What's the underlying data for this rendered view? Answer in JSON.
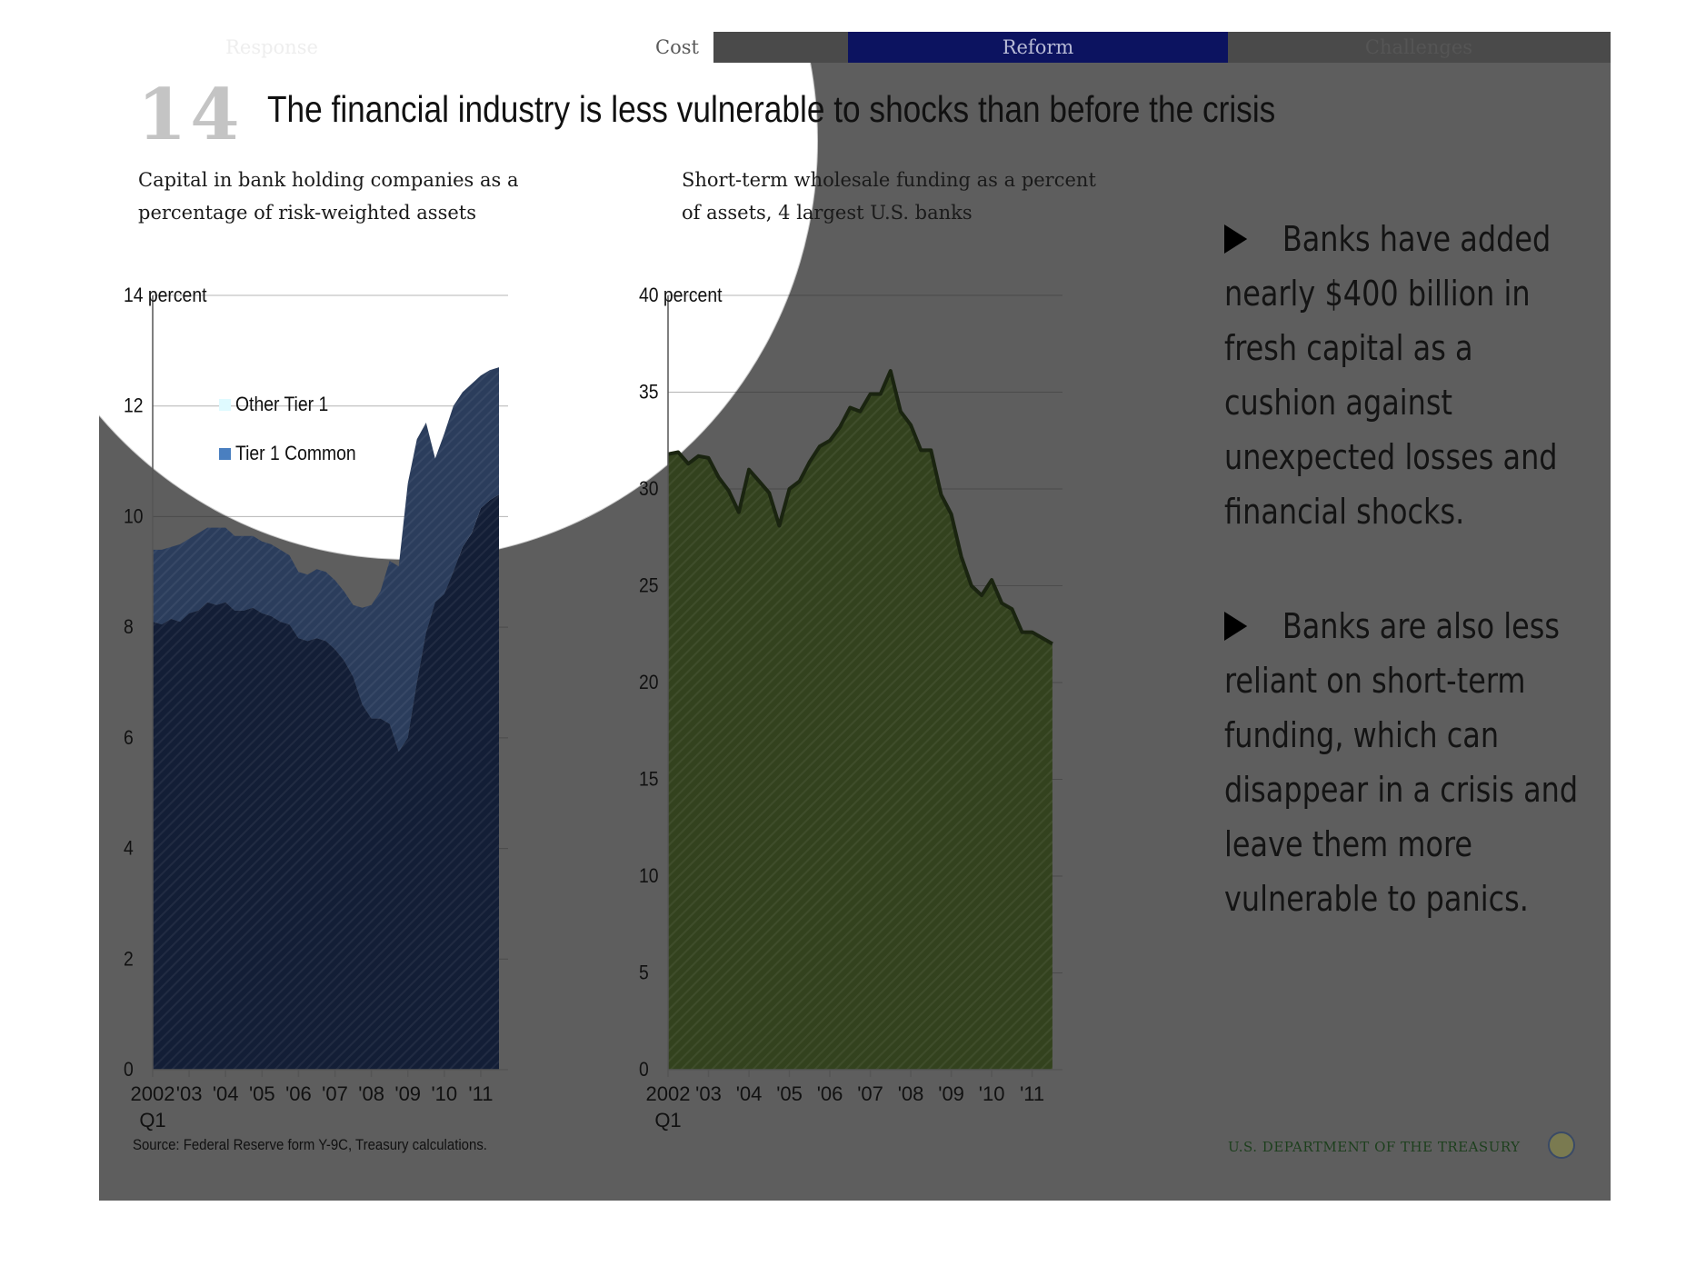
{
  "nav": {
    "items": [
      "Response",
      "Cost",
      "Reform",
      "Challenges"
    ],
    "active": "Reform"
  },
  "slide": {
    "number": "14",
    "title": "The financial industry is less vulnerable to shocks than before the crisis"
  },
  "bullets": [
    "Banks have added nearly $400 billion in fresh capital as a cushion against unexpected losses and financial shocks.",
    "Banks are also less reliant on short-term funding, which can disappear in a crisis and leave them more vulnerable to panics."
  ],
  "bullet_lines": [
    [
      "Banks have added",
      "nearly  $400 billion in",
      "fresh capital as a",
      "cushion against",
      "unexpected losses and",
      "financial shocks."
    ],
    [
      "Banks are also less",
      "reliant on short-term",
      "funding, which can",
      "disappear in a crisis and",
      "leave them more",
      "vulnerable to panics."
    ]
  ],
  "footer": {
    "source": "Source: Federal Reserve form Y-9C, Treasury calculations.",
    "org": "U.S. DEPARTMENT OF THE TREASURY"
  },
  "colors": {
    "tier1_common": "#131e36",
    "other_tier1": "#2b3d5c",
    "wholesale": "#33421e",
    "legend_common": "#4a7fc0",
    "legend_other": "#dffaff"
  },
  "chart_data": [
    {
      "type": "area",
      "title": "Capital in bank holding companies as a percentage of risk-weighted assets",
      "title_lines": [
        "Capital in bank holding companies as a",
        "percentage of risk-weighted assets"
      ],
      "ylabel": "percent",
      "unit_label": "14 percent",
      "ylim": [
        0,
        14
      ],
      "yticks": [
        0,
        2,
        4,
        6,
        8,
        10,
        12,
        14
      ],
      "ytick_labels": [
        "0",
        "2",
        "4",
        "6",
        "8",
        "10",
        "12",
        "14 percent"
      ],
      "xlim": [
        2002.0,
        2011.75
      ],
      "xticks": [
        2002,
        2003,
        2004,
        2005,
        2006,
        2007,
        2008,
        2009,
        2010,
        2011
      ],
      "xtick_labels": [
        "2002",
        "'03",
        "'04",
        "'05",
        "'06",
        "'07",
        "'08",
        "'09",
        "'10",
        "'11"
      ],
      "xtick_sublabel": "Q1",
      "legend": [
        "Other Tier 1",
        "Tier 1 Common"
      ],
      "stacked": true,
      "x": [
        2002.0,
        2002.25,
        2002.5,
        2002.75,
        2003.0,
        2003.25,
        2003.5,
        2003.75,
        2004.0,
        2004.25,
        2004.5,
        2004.75,
        2005.0,
        2005.25,
        2005.5,
        2005.75,
        2006.0,
        2006.25,
        2006.5,
        2006.75,
        2007.0,
        2007.25,
        2007.5,
        2007.75,
        2008.0,
        2008.25,
        2008.5,
        2008.75,
        2009.0,
        2009.25,
        2009.5,
        2009.75,
        2010.0,
        2010.25,
        2010.5,
        2010.75,
        2011.0,
        2011.25,
        2011.5
      ],
      "series": [
        {
          "name": "Tier 1 Common",
          "values": [
            8.1,
            8.05,
            8.15,
            8.1,
            8.25,
            8.3,
            8.45,
            8.4,
            8.45,
            8.3,
            8.3,
            8.35,
            8.25,
            8.2,
            8.1,
            8.05,
            7.8,
            7.75,
            7.8,
            7.75,
            7.6,
            7.4,
            7.1,
            6.6,
            6.35,
            6.35,
            6.25,
            5.75,
            6.0,
            7.0,
            7.9,
            8.45,
            8.6,
            9.0,
            9.45,
            9.7,
            10.15,
            10.3,
            10.4
          ]
        },
        {
          "name": "Other Tier 1",
          "values": [
            1.3,
            1.35,
            1.3,
            1.4,
            1.35,
            1.4,
            1.35,
            1.4,
            1.35,
            1.35,
            1.35,
            1.3,
            1.3,
            1.3,
            1.3,
            1.25,
            1.2,
            1.2,
            1.25,
            1.25,
            1.25,
            1.25,
            1.3,
            1.75,
            2.05,
            2.3,
            2.95,
            3.35,
            4.6,
            4.4,
            3.8,
            2.6,
            2.9,
            3.0,
            2.8,
            2.7,
            2.4,
            2.35,
            2.3
          ]
        }
      ]
    },
    {
      "type": "area",
      "title": "Short-term wholesale funding as a percent of assets, 4 largest U.S. banks",
      "title_lines": [
        "Short-term wholesale funding as a percent",
        "of assets, 4 largest U.S. banks"
      ],
      "ylabel": "percent",
      "unit_label": "40 percent",
      "ylim": [
        0,
        40
      ],
      "yticks": [
        0,
        5,
        10,
        15,
        20,
        25,
        30,
        35,
        40
      ],
      "ytick_labels": [
        "0",
        "5",
        "10",
        "15",
        "20",
        "25",
        "30",
        "35",
        "40 percent"
      ],
      "xlim": [
        2002.0,
        2011.75
      ],
      "xticks": [
        2002,
        2003,
        2004,
        2005,
        2006,
        2007,
        2008,
        2009,
        2010,
        2011
      ],
      "xtick_labels": [
        "2002",
        "'03",
        "'04",
        "'05",
        "'06",
        "'07",
        "'08",
        "'09",
        "'10",
        "'11"
      ],
      "xtick_sublabel": "Q1",
      "x": [
        2002.0,
        2002.25,
        2002.5,
        2002.75,
        2003.0,
        2003.25,
        2003.5,
        2003.75,
        2004.0,
        2004.25,
        2004.5,
        2004.75,
        2005.0,
        2005.25,
        2005.5,
        2005.75,
        2006.0,
        2006.25,
        2006.5,
        2006.75,
        2007.0,
        2007.25,
        2007.5,
        2007.75,
        2008.0,
        2008.25,
        2008.5,
        2008.75,
        2009.0,
        2009.25,
        2009.5,
        2009.75,
        2010.0,
        2010.25,
        2010.5,
        2010.75,
        2011.0,
        2011.25,
        2011.5
      ],
      "series": [
        {
          "name": "",
          "values": [
            31.8,
            31.9,
            31.3,
            31.7,
            31.6,
            30.6,
            29.9,
            28.8,
            31.0,
            30.4,
            29.8,
            28.1,
            30.0,
            30.4,
            31.4,
            32.2,
            32.5,
            33.2,
            34.2,
            34.0,
            34.9,
            34.9,
            36.1,
            34.0,
            33.3,
            32.0,
            32.0,
            29.7,
            28.7,
            26.5,
            25.0,
            24.5,
            25.3,
            24.1,
            23.8,
            22.6,
            22.6,
            22.3,
            22.0
          ]
        }
      ]
    }
  ]
}
